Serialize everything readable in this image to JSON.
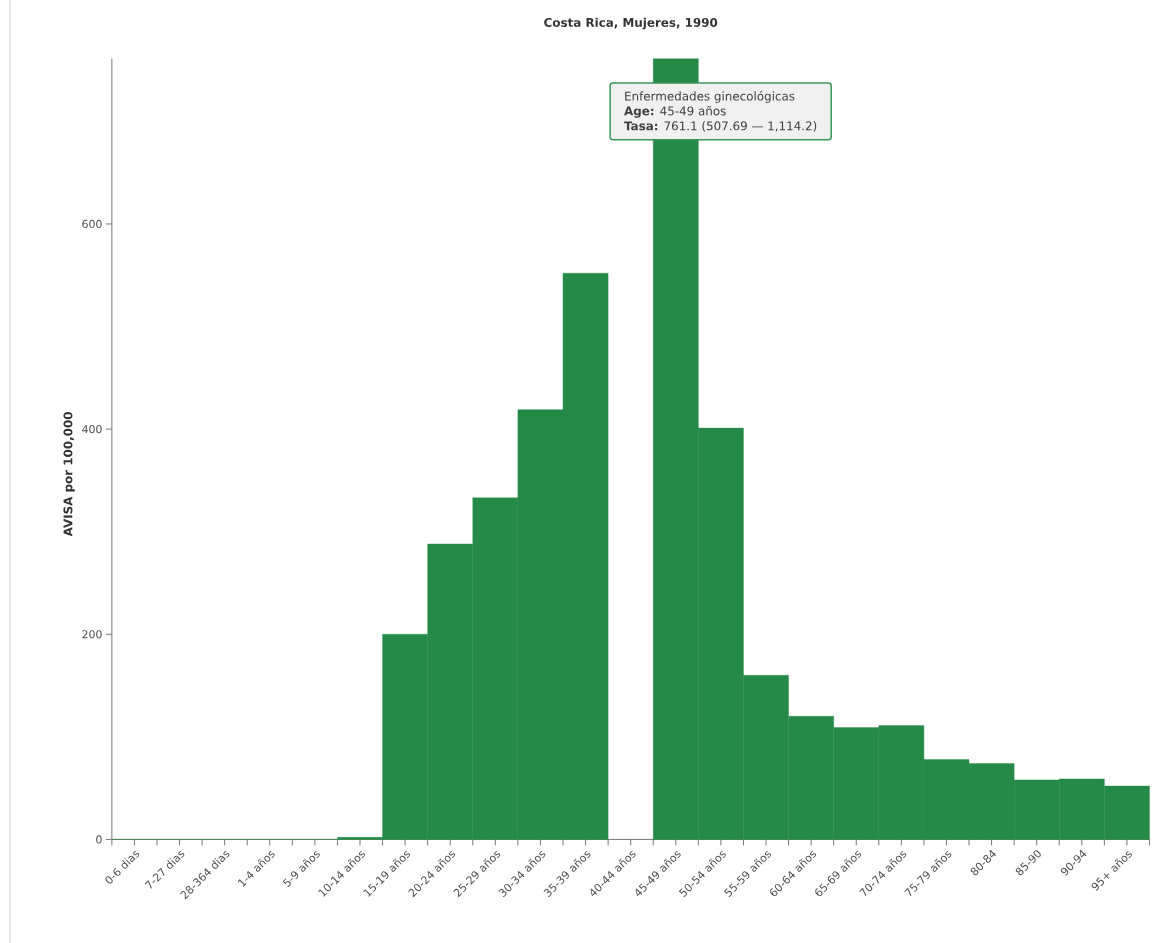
{
  "chart_data": {
    "type": "bar",
    "title": "Costa Rica, Mujeres, 1990",
    "ylabel": "AVISA por 100,000",
    "categories": [
      "0-6 dias",
      "7-27 dias",
      "28-364 dias",
      "1-4 años",
      "5-9 años",
      "10-14 años",
      "15-19 años",
      "20-24 años",
      "25-29 años",
      "30-34 años",
      "35-39 años",
      "40-44 años",
      "45-49 años",
      "50-54 años",
      "55-59 años",
      "60-64 años",
      "65-69 años",
      "70-74 años",
      "75-79 años",
      "80-84",
      "85-90",
      "90-94",
      "95+ años"
    ],
    "values": [
      0,
      0,
      0,
      0,
      0,
      2,
      200,
      288,
      333,
      419,
      552,
      null,
      761.1,
      401,
      160,
      120,
      109,
      111,
      78,
      74,
      58,
      59,
      52
    ],
    "color": "#258a47",
    "ylim": [
      0,
      761.1
    ],
    "yticks": [
      0,
      200,
      400,
      600
    ],
    "grid": false,
    "annotations": [
      "Enfermedades ginecológicas",
      "**Age:** 45-49 años",
      "**Tasa:** 761.1 (507.69 — 1,114.2)"
    ]
  }
}
